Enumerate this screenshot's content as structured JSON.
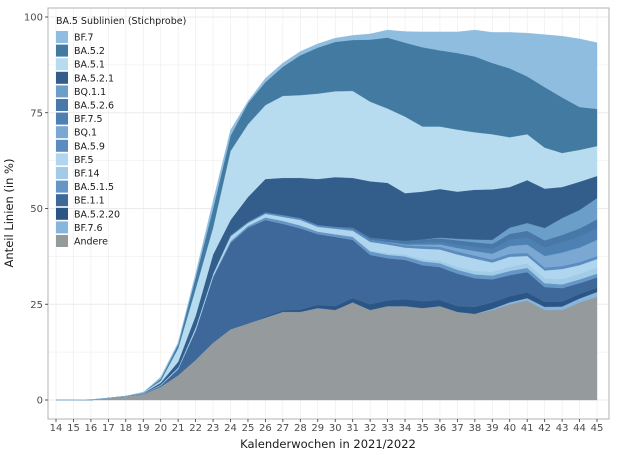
{
  "chart_data": {
    "type": "area",
    "stacked": true,
    "xlabel": "Kalenderwochen in 2021/2022",
    "ylabel": "Anteil Linien (in %)",
    "ylim": [
      0,
      100
    ],
    "yticks": [
      0,
      25,
      50,
      75,
      100
    ],
    "grid": true,
    "legend_title": "BA.5 Sublinien (Stichprobe)",
    "legend_position": "top-left inside",
    "x": [
      14,
      15,
      16,
      17,
      18,
      19,
      20,
      21,
      22,
      23,
      24,
      25,
      26,
      27,
      28,
      29,
      30,
      31,
      32,
      33,
      34,
      35,
      36,
      37,
      38,
      39,
      40,
      41,
      42,
      43,
      44,
      45
    ],
    "series": [
      {
        "name": "BF.7",
        "color": "#8fbde0",
        "values": [
          0,
          0,
          0,
          0,
          0,
          0,
          0.5,
          0.5,
          1,
          2,
          1.5,
          0.5,
          1,
          1,
          1,
          1,
          1,
          1.2,
          1.5,
          2,
          2.9,
          4,
          4.8,
          5.5,
          6.9,
          8,
          9.4,
          11.3,
          13.7,
          16,
          17.8,
          17.3
        ]
      },
      {
        "name": "BA.5.2",
        "color": "#427aa1",
        "values": [
          0,
          0,
          0,
          0,
          0,
          0,
          0.5,
          1,
          3,
          5,
          4,
          5.5,
          6,
          7.6,
          10.4,
          12,
          12.9,
          13.3,
          16.2,
          18.5,
          19.3,
          20.7,
          19.9,
          20,
          19.8,
          18.6,
          18,
          15.1,
          15.8,
          14.5,
          11.2,
          9.7
        ]
      },
      {
        "name": "BA.5.1",
        "color": "#b7dcf0",
        "values": [
          0,
          0,
          0.1,
          0,
          0,
          0.2,
          0.5,
          3.5,
          7,
          7,
          18,
          19,
          19.3,
          21.4,
          21.6,
          22.3,
          22.4,
          22.7,
          20.8,
          19.4,
          20,
          17,
          16.3,
          16.2,
          15,
          14.4,
          13,
          12,
          10.7,
          8.9,
          8.3,
          7.8
        ]
      },
      {
        "name": "BA.5.2.1",
        "color": "#335e8c",
        "values": [
          0,
          0,
          0,
          0,
          0,
          0.1,
          0.5,
          1.5,
          3,
          5,
          4,
          6.5,
          8.7,
          9.7,
          10.5,
          12,
          13,
          13,
          14.7,
          14.8,
          12.5,
          12.5,
          12.7,
          12.3,
          13,
          13.2,
          10.6,
          11.2,
          10.3,
          8.1,
          7.4,
          5.8
        ]
      },
      {
        "name": "BQ.1.1",
        "color": "#6b9fc9",
        "values": [
          0,
          0,
          0,
          0,
          0,
          0,
          0,
          0,
          0,
          0,
          0,
          0,
          0,
          0,
          0,
          0,
          0,
          0,
          0,
          0,
          0,
          0,
          0.2,
          0.4,
          0.7,
          1,
          1.6,
          2,
          3.2,
          4.4,
          4.8,
          5.5
        ]
      },
      {
        "name": "BA.5.2.6",
        "color": "#4878a8",
        "values": [
          0,
          0,
          0,
          0,
          0,
          0,
          0,
          0,
          0,
          0,
          0,
          0,
          0,
          0,
          0,
          0,
          0,
          0.3,
          0.5,
          0.6,
          0.7,
          0.9,
          1,
          1.2,
          1.3,
          1.4,
          1.6,
          1.8,
          1.9,
          2,
          2.2,
          2.4
        ]
      },
      {
        "name": "BF.7.5",
        "color": "#4d80b3",
        "values": [
          0,
          0,
          0,
          0,
          0,
          0,
          0,
          0,
          0,
          0,
          0,
          0,
          0,
          0,
          0,
          0,
          0,
          0,
          0,
          0,
          0.2,
          0.4,
          0.6,
          0.8,
          1,
          1.2,
          1.6,
          1.8,
          2.2,
          2.6,
          2.8,
          3
        ]
      },
      {
        "name": "BQ.1",
        "color": "#7aa8d2",
        "values": [
          0,
          0,
          0,
          0,
          0,
          0,
          0,
          0,
          0,
          0,
          0,
          0,
          0,
          0,
          0,
          0,
          0,
          0,
          0,
          0.1,
          0.2,
          0.4,
          0.6,
          0.9,
          1.2,
          1.5,
          2,
          2.2,
          3,
          3.5,
          3.8,
          4.2
        ]
      },
      {
        "name": "BA.5.9",
        "color": "#5a8cbf",
        "values": [
          0,
          0,
          0,
          0,
          0,
          0,
          0,
          0,
          0,
          0,
          0.3,
          0.3,
          0.4,
          0.5,
          0.5,
          0.5,
          0.5,
          0.5,
          0.6,
          0.6,
          0.6,
          0.7,
          0.7,
          0.8,
          0.8,
          0.8,
          0.8,
          0.8,
          0.8,
          0.8,
          0.8,
          0.8
        ]
      },
      {
        "name": "BF.5",
        "color": "#b0d6ef",
        "values": [
          0,
          0,
          0,
          0,
          0,
          0.1,
          0.2,
          0.3,
          0.7,
          0.7,
          1.2,
          0.7,
          0.9,
          1,
          1.4,
          1.2,
          1.4,
          1.4,
          2.2,
          2.3,
          1.8,
          2.7,
          2.9,
          3.2,
          3.2,
          2.4,
          2.6,
          1.9,
          2,
          2.6,
          2.2,
          2.2
        ]
      },
      {
        "name": "BF.14",
        "color": "#a2cbe8",
        "values": [
          0,
          0,
          0,
          0,
          0,
          0,
          0,
          0,
          0,
          0,
          0,
          0,
          0,
          0,
          0,
          0,
          0,
          0.2,
          0.3,
          0.4,
          0.5,
          0.6,
          0.7,
          0.8,
          0.9,
          1,
          1.1,
          1.2,
          1.3,
          1.4,
          1.5,
          1.6
        ]
      },
      {
        "name": "BA.5.1.5",
        "color": "#6597c6",
        "values": [
          0,
          0,
          0,
          0,
          0,
          0,
          0,
          0.2,
          0.3,
          0.3,
          0.5,
          0.5,
          0.7,
          0.8,
          0.8,
          0.7,
          0.7,
          0.8,
          0.9,
          0.9,
          0.9,
          1,
          1,
          1,
          1,
          1,
          1.1,
          1.1,
          1,
          1,
          1,
          1
        ]
      },
      {
        "name": "BE.1.1",
        "color": "#3d6899",
        "values": [
          0,
          0,
          0,
          0,
          0,
          0.1,
          0.3,
          1.5,
          7.5,
          17,
          22.5,
          25,
          25.2,
          22.6,
          21.2,
          18.5,
          18.1,
          15.2,
          12.9,
          11,
          10.3,
          9.4,
          8.6,
          8.5,
          7.5,
          6,
          5.5,
          5.3,
          3.9,
          3.5,
          2.8,
          2.7
        ]
      },
      {
        "name": "BA.5.2.20",
        "color": "#2b5584",
        "values": [
          0,
          0,
          0,
          0,
          0,
          0,
          0,
          0,
          0,
          0,
          0,
          0,
          0.3,
          0.4,
          0.6,
          0.8,
          1,
          1.1,
          1.5,
          1.5,
          1.8,
          1.8,
          1.6,
          1.5,
          1.8,
          1.7,
          1.6,
          1.5,
          1.3,
          1.3,
          1.2,
          1.1
        ]
      },
      {
        "name": "BF.7.6",
        "color": "#86b5de",
        "values": [
          0,
          0,
          0,
          0,
          0,
          0,
          0,
          0,
          0,
          0,
          0,
          0,
          0,
          0,
          0,
          0,
          0,
          0,
          0,
          0,
          0,
          0,
          0,
          0,
          0,
          0.3,
          0.5,
          0.6,
          0.8,
          0.9,
          1,
          1.2
        ]
      },
      {
        "name": "Andere",
        "color": "#959a9d",
        "values": [
          0,
          0,
          0,
          0.5,
          1,
          1.5,
          3.5,
          6.5,
          10.5,
          15,
          18.5,
          20,
          21.5,
          23,
          23,
          24,
          23.5,
          25.5,
          23.5,
          24.5,
          24.5,
          24,
          24.5,
          23,
          22.5,
          23.5,
          25,
          26,
          23.5,
          23.5,
          25.5,
          27
        ]
      }
    ]
  }
}
